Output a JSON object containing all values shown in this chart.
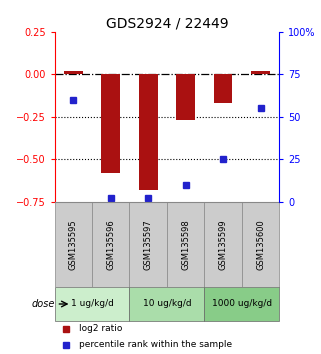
{
  "title": "GDS2924 / 22449",
  "samples": [
    "GSM135595",
    "GSM135596",
    "GSM135597",
    "GSM135598",
    "GSM135599",
    "GSM135600"
  ],
  "log2_ratio": [
    0.02,
    -0.58,
    -0.68,
    -0.27,
    -0.17,
    0.02
  ],
  "percentile_rank": [
    60,
    2,
    2,
    10,
    25,
    55
  ],
  "left_ylim": [
    -0.75,
    0.25
  ],
  "right_ylim": [
    0,
    100
  ],
  "left_yticks": [
    0.25,
    0,
    -0.25,
    -0.5,
    -0.75
  ],
  "right_yticks": [
    100,
    75,
    50,
    25,
    0
  ],
  "right_yticklabels": [
    "100%",
    "75",
    "50",
    "25",
    "0"
  ],
  "hlines_dotted": [
    -0.25,
    -0.5
  ],
  "hline_dashdot": 0,
  "bar_color": "#aa1111",
  "square_color": "#2222cc",
  "dose_groups": [
    {
      "label": "1 ug/kg/d",
      "indices": [
        0,
        1
      ],
      "color": "#cceecc"
    },
    {
      "label": "10 ug/kg/d",
      "indices": [
        2,
        3
      ],
      "color": "#aaddaa"
    },
    {
      "label": "1000 ug/kg/d",
      "indices": [
        4,
        5
      ],
      "color": "#88cc88"
    }
  ],
  "dose_label": "dose",
  "legend_log2": "log2 ratio",
  "legend_pct": "percentile rank within the sample",
  "title_fontsize": 10,
  "tick_fontsize": 7,
  "sample_box_color": "#cccccc",
  "sample_box_edge": "#888888"
}
